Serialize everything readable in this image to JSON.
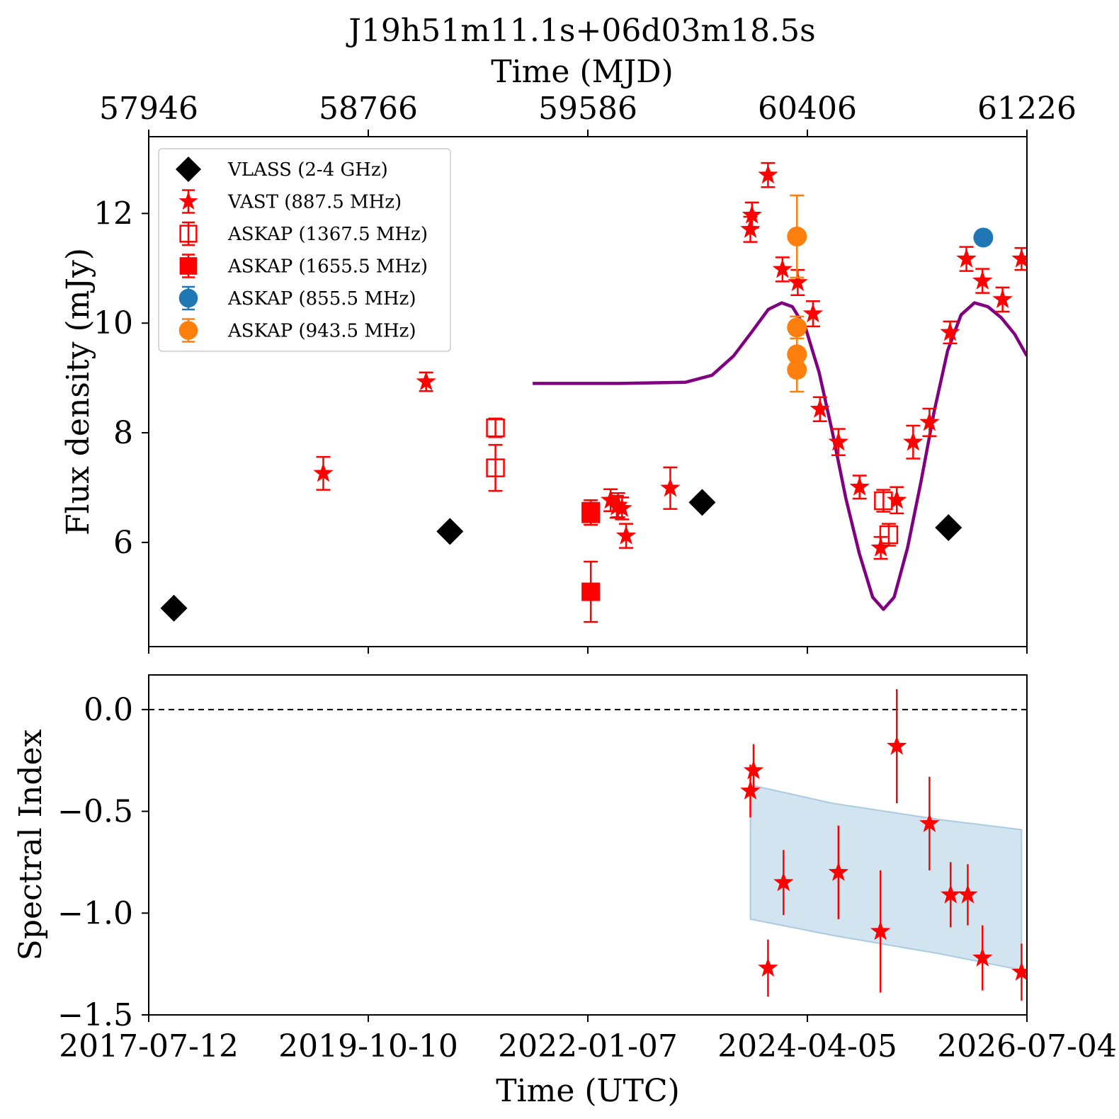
{
  "title": "J19h51m11.1s+06d03m18.5s",
  "chart_data": [
    {
      "panel": "top",
      "type": "scatter",
      "xlabel_top": "Time (MJD)",
      "xticks_top": [
        "57946",
        "58766",
        "59586",
        "60406",
        "61226"
      ],
      "ylabel": "Flux density (mJy)",
      "yticks": [
        "6",
        "8",
        "10",
        "12"
      ],
      "xlim_mjd": [
        57946,
        61226
      ],
      "ylim": [
        4.1,
        13.4
      ],
      "legend_position": "upper-left",
      "series": [
        {
          "name": "VLASS (2-4 GHz)",
          "marker": "diamond",
          "filled": true,
          "color": "#000000",
          "points": [
            [
              58040,
              4.8
            ],
            [
              59071,
              6.2
            ],
            [
              60013,
              6.73
            ],
            [
              60933,
              6.27
            ]
          ]
        },
        {
          "name": "VAST (887.5 MHz)",
          "marker": "star",
          "filled": true,
          "color": "#ff0000",
          "points": [
            [
              58598,
              7.26,
              0.3
            ],
            [
              58982,
              8.93,
              0.17
            ],
            [
              59671,
              6.77,
              0.2
            ],
            [
              59694,
              6.65,
              0.2
            ],
            [
              59699,
              6.68,
              0.22
            ],
            [
              59714,
              6.62,
              0.2
            ],
            [
              59729,
              6.12,
              0.22
            ],
            [
              59894,
              6.99,
              0.38
            ],
            [
              60193,
              11.71,
              0.23
            ],
            [
              60199,
              11.97,
              0.23
            ],
            [
              60259,
              12.7,
              0.22
            ],
            [
              60313,
              10.98,
              0.22
            ],
            [
              60370,
              10.74,
              0.23
            ],
            [
              60427,
              10.17,
              0.23
            ],
            [
              60453,
              8.43,
              0.22
            ],
            [
              60522,
              7.83,
              0.24
            ],
            [
              60601,
              7.01,
              0.21
            ],
            [
              60680,
              5.9,
              0.2
            ],
            [
              60740,
              6.77,
              0.24
            ],
            [
              60801,
              7.83,
              0.3
            ],
            [
              60862,
              8.19,
              0.25
            ],
            [
              60939,
              9.83,
              0.2
            ],
            [
              61000,
              11.17,
              0.22
            ],
            [
              61060,
              10.77,
              0.22
            ],
            [
              61135,
              10.43,
              0.22
            ],
            [
              61206,
              11.17,
              0.2
            ]
          ]
        },
        {
          "name": "ASKAP (1367.5 MHz)",
          "marker": "square",
          "filled": false,
          "color": "#ff0000",
          "points": [
            [
              59241,
              8.09,
              0.17
            ],
            [
              59241,
              7.36,
              0.42
            ],
            [
              60690,
              6.76,
              0.2
            ],
            [
              60710,
              6.14,
              0.2
            ]
          ]
        },
        {
          "name": "ASKAP (1655.5 MHz)",
          "marker": "square",
          "filled": true,
          "color": "#ff0000",
          "points": [
            [
              59597,
              6.57,
              0.2
            ],
            [
              59597,
              6.52,
              0.2
            ],
            [
              59597,
              5.1,
              0.55
            ]
          ]
        },
        {
          "name": "ASKAP (855.5 MHz)",
          "marker": "circle",
          "filled": true,
          "color": "#1f77b4",
          "points": [
            [
              61063,
              11.56,
              0.05
            ]
          ]
        },
        {
          "name": "ASKAP (943.5 MHz)",
          "marker": "circle",
          "filled": true,
          "color": "#ff7f0e",
          "points": [
            [
              60367,
              11.58,
              0.75
            ],
            [
              60367,
              9.92,
              0.2
            ],
            [
              60367,
              9.43,
              0.4
            ],
            [
              60367,
              9.15,
              0.4
            ]
          ]
        }
      ],
      "model_curve": {
        "color": "#800080",
        "points": [
          [
            59380,
            8.9
          ],
          [
            59700,
            8.9
          ],
          [
            59950,
            8.92
          ],
          [
            60050,
            9.05
          ],
          [
            60130,
            9.4
          ],
          [
            60200,
            9.85
          ],
          [
            60260,
            10.25
          ],
          [
            60310,
            10.37
          ],
          [
            60350,
            10.3
          ],
          [
            60400,
            9.9
          ],
          [
            60450,
            9.1
          ],
          [
            60500,
            8.0
          ],
          [
            60550,
            6.8
          ],
          [
            60600,
            5.8
          ],
          [
            60650,
            5.0
          ],
          [
            60690,
            4.78
          ],
          [
            60730,
            5.0
          ],
          [
            60780,
            5.9
          ],
          [
            60830,
            7.1
          ],
          [
            60880,
            8.4
          ],
          [
            60930,
            9.5
          ],
          [
            60980,
            10.15
          ],
          [
            61030,
            10.37
          ],
          [
            61080,
            10.3
          ],
          [
            61130,
            10.1
          ],
          [
            61180,
            9.8
          ],
          [
            61226,
            9.4
          ]
        ]
      }
    },
    {
      "panel": "bottom",
      "type": "scatter",
      "xlabel": "Time (UTC)",
      "xticks": [
        "2017-07-12",
        "2019-10-10",
        "2022-01-07",
        "2024-04-05",
        "2026-07-04"
      ],
      "ylabel": "Spectral Index",
      "yticks": [
        "0.0",
        "−0.5",
        "−1.0",
        "−1.5"
      ],
      "ylim": [
        -1.5,
        0.17
      ],
      "xlim_mjd": [
        57946,
        61226
      ],
      "reference_line": {
        "y": 0.0,
        "style": "dashed",
        "color": "#000000"
      },
      "band": {
        "color": "#1f77b4",
        "opacity": 0.2,
        "upper": [
          [
            60193,
            -0.37
          ],
          [
            60500,
            -0.46
          ],
          [
            60900,
            -0.54
          ],
          [
            61206,
            -0.59
          ]
        ],
        "lower": [
          [
            60193,
            -1.03
          ],
          [
            60500,
            -1.11
          ],
          [
            60900,
            -1.2
          ],
          [
            61206,
            -1.28
          ]
        ]
      },
      "series": [
        {
          "name": "",
          "marker": "star",
          "filled": true,
          "color": "#ff0000",
          "points": [
            [
              60193,
              -0.4,
              0.13
            ],
            [
              60205,
              -0.3,
              0.13
            ],
            [
              60259,
              -1.27,
              0.14
            ],
            [
              60317,
              -0.85,
              0.16
            ],
            [
              60522,
              -0.8,
              0.23
            ],
            [
              60679,
              -1.09,
              0.3
            ],
            [
              60740,
              -0.18,
              0.28
            ],
            [
              60862,
              -0.56,
              0.23
            ],
            [
              60941,
              -0.91,
              0.16
            ],
            [
              61005,
              -0.91,
              0.15
            ],
            [
              61060,
              -1.22,
              0.16
            ],
            [
              61206,
              -1.29,
              0.14
            ]
          ]
        }
      ]
    }
  ]
}
